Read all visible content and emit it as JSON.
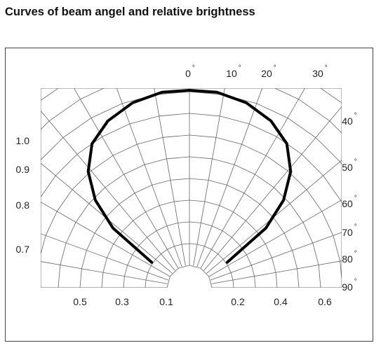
{
  "title": "Curves of beam angel and relative brightness",
  "chart_data": {
    "type": "line",
    "title": "Curves of beam angel and relative brightness",
    "angle_ticks": [
      "0",
      "10",
      "20",
      "30",
      "40",
      "50",
      "60",
      "70",
      "80",
      "90"
    ],
    "degree_symbol": "°",
    "left_ticks": [
      "1.0",
      "0.9",
      "0.8",
      "0.7"
    ],
    "bottom_ticks": [
      "0.5",
      "0.3",
      "0.1",
      "0.2",
      "0.4",
      "0.6"
    ],
    "angle_range": [
      -90,
      90
    ],
    "grid": true,
    "series": [
      {
        "angles": [
          -56,
          -52,
          -47,
          -41,
          -34,
          -26,
          -17,
          -8,
          0,
          8,
          17,
          26,
          34,
          41,
          47,
          52,
          56
        ],
        "values": [
          0.23,
          0.49,
          0.65,
          0.78,
          0.88,
          0.94,
          0.98,
          1.0,
          1.0,
          1.0,
          0.98,
          0.94,
          0.88,
          0.78,
          0.65,
          0.49,
          0.23
        ],
        "color": "#000000"
      }
    ]
  }
}
